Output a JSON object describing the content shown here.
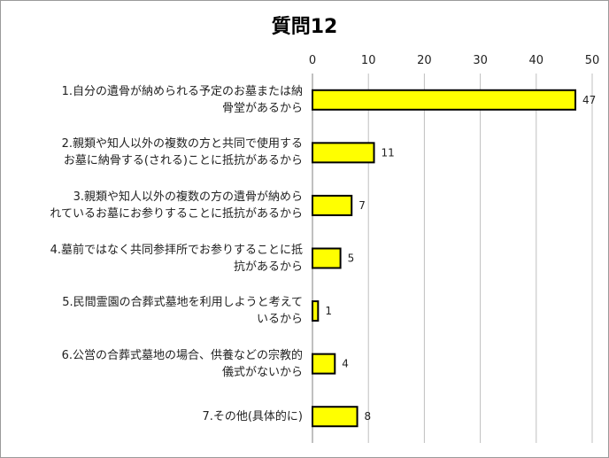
{
  "chart_data": {
    "type": "bar",
    "orientation": "horizontal",
    "title": "質問12",
    "categories": [
      [
        "1.自分の遺骨が納められる予定のお墓または納",
        "骨堂があるから"
      ],
      [
        "2.親類や知人以外の複数の方と共同で使用する",
        "お墓に納骨する(される)ことに抵抗があるから"
      ],
      [
        "3.親類や知人以外の複数の方の遺骨が納めら",
        "れているお墓にお参りすることに抵抗があるから"
      ],
      [
        "4.墓前ではなく共同参拝所でお参りすることに抵",
        "抗があるから"
      ],
      [
        "5.民間霊園の合葬式墓地を利用しようと考えて",
        "いるから"
      ],
      [
        "6.公営の合葬式墓地の場合、供養などの宗教的",
        "儀式がないから"
      ],
      [
        "7.その他(具体的に)"
      ]
    ],
    "values": [
      47,
      11,
      7,
      5,
      1,
      4,
      8
    ],
    "value_labels": [
      "47",
      "11",
      "7",
      "5",
      "1",
      "4",
      "8"
    ],
    "xlim": [
      0,
      50
    ],
    "xticks": [
      "0",
      "10",
      "20",
      "30",
      "40",
      "50"
    ],
    "tick_position": "top",
    "grid": "vertical",
    "legend": "none",
    "colors": {
      "bar_fill": "#ffff00",
      "bar_stroke": "#000000",
      "grid": "#bfbfbf",
      "axis": "#808080"
    }
  }
}
